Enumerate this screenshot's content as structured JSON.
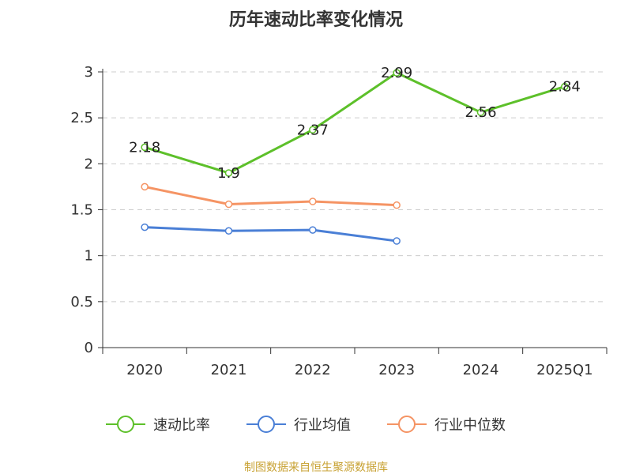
{
  "chart_data": {
    "type": "line",
    "title": "历年速动比率变化情况",
    "categories": [
      "2020",
      "2021",
      "2022",
      "2023",
      "2024",
      "2025Q1"
    ],
    "ylim": [
      0,
      3
    ],
    "yticks": [
      "0",
      "0.5",
      "1",
      "1.5",
      "2",
      "2.5",
      "3"
    ],
    "grid": true,
    "legend_position": "bottom",
    "series": [
      {
        "name": "速动比率",
        "color": "#5dc02a",
        "values": [
          2.18,
          1.9,
          2.37,
          2.99,
          2.56,
          2.84
        ],
        "labels": [
          "2.18",
          "1.9",
          "2.37",
          "2.99",
          "2.56",
          "2.84"
        ]
      },
      {
        "name": "行业均值",
        "color": "#4a7fd6",
        "values": [
          1.31,
          1.27,
          1.28,
          1.16,
          null,
          null
        ]
      },
      {
        "name": "行业中位数",
        "color": "#f59464",
        "values": [
          1.75,
          1.56,
          1.59,
          1.55,
          null,
          null
        ]
      }
    ],
    "source": "制图数据来自恒生聚源数据库",
    "source_color": "#c8a233"
  }
}
